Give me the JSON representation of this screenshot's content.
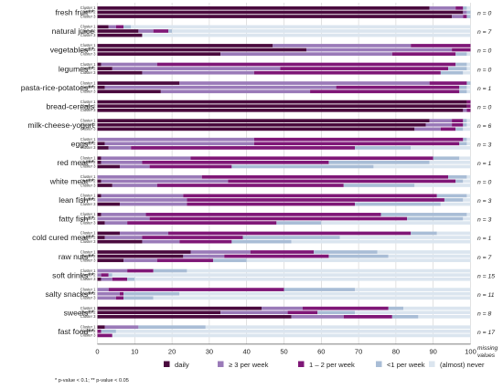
{
  "chart_data": {
    "type": "bar",
    "orientation": "horizontal",
    "stacked": true,
    "xlim": [
      0,
      100
    ],
    "x_ticks": [
      "0",
      "10",
      "20",
      "30",
      "40",
      "50",
      "60",
      "70",
      "80",
      "90",
      "100"
    ],
    "cluster_labels": [
      "Cluster 1",
      "Cluster 2",
      "Cluster 3"
    ],
    "legend_position": "bottom",
    "series": [
      {
        "name": "daily",
        "color": "#4a0a3e"
      },
      {
        "name": "≥ 3 per week",
        "color": "#9a7ab8"
      },
      {
        "name": "1 – 2 per week",
        "color": "#7f1777"
      },
      {
        "name": "<1 per week",
        "color": "#a9bdd6"
      },
      {
        "name": "(almost) never",
        "color": "#dbe5ef"
      }
    ],
    "missing_values_label": [
      "missing",
      "values"
    ],
    "categories": [
      {
        "label": "fresh fruit**",
        "n": "n = 0",
        "clusters": [
          [
            89,
            7,
            2,
            1,
            1
          ],
          [
            98,
            1,
            0,
            1,
            0
          ],
          [
            95,
            3,
            1,
            1,
            0
          ]
        ]
      },
      {
        "label": "natural juice",
        "n": "n = 7",
        "clusters": [
          [
            3,
            2,
            2,
            2,
            91
          ],
          [
            11,
            4,
            4,
            1,
            80
          ],
          [
            12,
            0,
            0,
            0,
            88
          ]
        ]
      },
      {
        "label": "vegetables**",
        "n": "n = 0",
        "clusters": [
          [
            47,
            37,
            16,
            0,
            0
          ],
          [
            56,
            39,
            5,
            0,
            0
          ],
          [
            33,
            46,
            17,
            3,
            1
          ]
        ]
      },
      {
        "label": "legumes**",
        "n": "n = 0",
        "clusters": [
          [
            1,
            15,
            80,
            3,
            1
          ],
          [
            4,
            45,
            45,
            5,
            1
          ],
          [
            12,
            30,
            50,
            6,
            2
          ]
        ]
      },
      {
        "label": "pasta-rice-potatoes**",
        "n": "n = 1",
        "clusters": [
          [
            22,
            67,
            10,
            1,
            0
          ],
          [
            2,
            62,
            33,
            2,
            1
          ],
          [
            17,
            40,
            40,
            2,
            1
          ]
        ]
      },
      {
        "label": "bread-cereals",
        "n": "n = 0",
        "clusters": [
          [
            99,
            0,
            1,
            0,
            0
          ],
          [
            99,
            0,
            1,
            0,
            0
          ],
          [
            98,
            1,
            1,
            0,
            0
          ]
        ]
      },
      {
        "label": "milk-cheese-yogurt",
        "n": "n = 6",
        "clusters": [
          [
            89,
            6,
            3,
            1,
            1
          ],
          [
            88,
            7,
            3,
            1,
            1
          ],
          [
            85,
            7,
            4,
            2,
            2
          ]
        ]
      },
      {
        "label": "eggs**",
        "n": "n = 3",
        "clusters": [
          [
            0,
            42,
            56,
            1,
            1
          ],
          [
            2,
            40,
            55,
            2,
            1
          ],
          [
            3,
            6,
            60,
            15,
            16
          ]
        ]
      },
      {
        "label": "red meat**",
        "n": "n = 1",
        "clusters": [
          [
            1,
            24,
            65,
            7,
            3
          ],
          [
            1,
            11,
            50,
            27,
            11
          ],
          [
            6,
            8,
            22,
            38,
            26
          ]
        ]
      },
      {
        "label": "white meat**",
        "n": "n = 0",
        "clusters": [
          [
            0,
            28,
            66,
            5,
            1
          ],
          [
            1,
            34,
            61,
            2,
            2
          ],
          [
            4,
            12,
            50,
            19,
            15
          ]
        ]
      },
      {
        "label": "lean fish**",
        "n": "n = 3",
        "clusters": [
          [
            1,
            22,
            68,
            8,
            1
          ],
          [
            0,
            24,
            69,
            5,
            2
          ],
          [
            6,
            18,
            45,
            23,
            8
          ]
        ]
      },
      {
        "label": "fatty fish**",
        "n": "n = 3",
        "clusters": [
          [
            1,
            12,
            63,
            23,
            1
          ],
          [
            0,
            14,
            69,
            15,
            2
          ],
          [
            2,
            6,
            40,
            12,
            40
          ]
        ]
      },
      {
        "label": "cold cured meat**",
        "n": "n = 1",
        "clusters": [
          [
            6,
            13,
            65,
            7,
            9
          ],
          [
            2,
            10,
            27,
            26,
            35
          ],
          [
            12,
            10,
            14,
            16,
            48
          ]
        ]
      },
      {
        "label": "raw nuts**",
        "n": "n = 7",
        "clusters": [
          [
            25,
            16,
            17,
            17,
            25
          ],
          [
            23,
            11,
            28,
            16,
            22
          ],
          [
            7,
            9,
            15,
            9,
            60
          ]
        ]
      },
      {
        "label": "soft drinks**",
        "n": "n = 15",
        "clusters": [
          [
            0,
            8,
            7,
            9,
            76
          ],
          [
            0,
            1,
            2,
            1,
            96
          ],
          [
            1,
            3,
            4,
            2,
            90
          ]
        ]
      },
      {
        "label": "salty snacks**",
        "n": "n = 11",
        "clusters": [
          [
            0,
            3,
            47,
            19,
            31
          ],
          [
            0,
            6,
            1,
            15,
            78
          ],
          [
            0,
            5,
            2,
            8,
            85
          ]
        ]
      },
      {
        "label": "sweets**",
        "n": "n = 8",
        "clusters": [
          [
            44,
            11,
            23,
            4,
            18
          ],
          [
            33,
            18,
            8,
            10,
            31
          ],
          [
            52,
            14,
            13,
            7,
            14
          ]
        ]
      },
      {
        "label": "fast food**",
        "n": "n = 17",
        "clusters": [
          [
            2,
            9,
            0,
            18,
            71
          ],
          [
            0,
            0,
            1,
            4,
            95
          ],
          [
            0,
            0,
            4,
            0,
            96
          ]
        ]
      }
    ],
    "footnote": "* p-value < 0.1; ** p-value < 0.05"
  }
}
